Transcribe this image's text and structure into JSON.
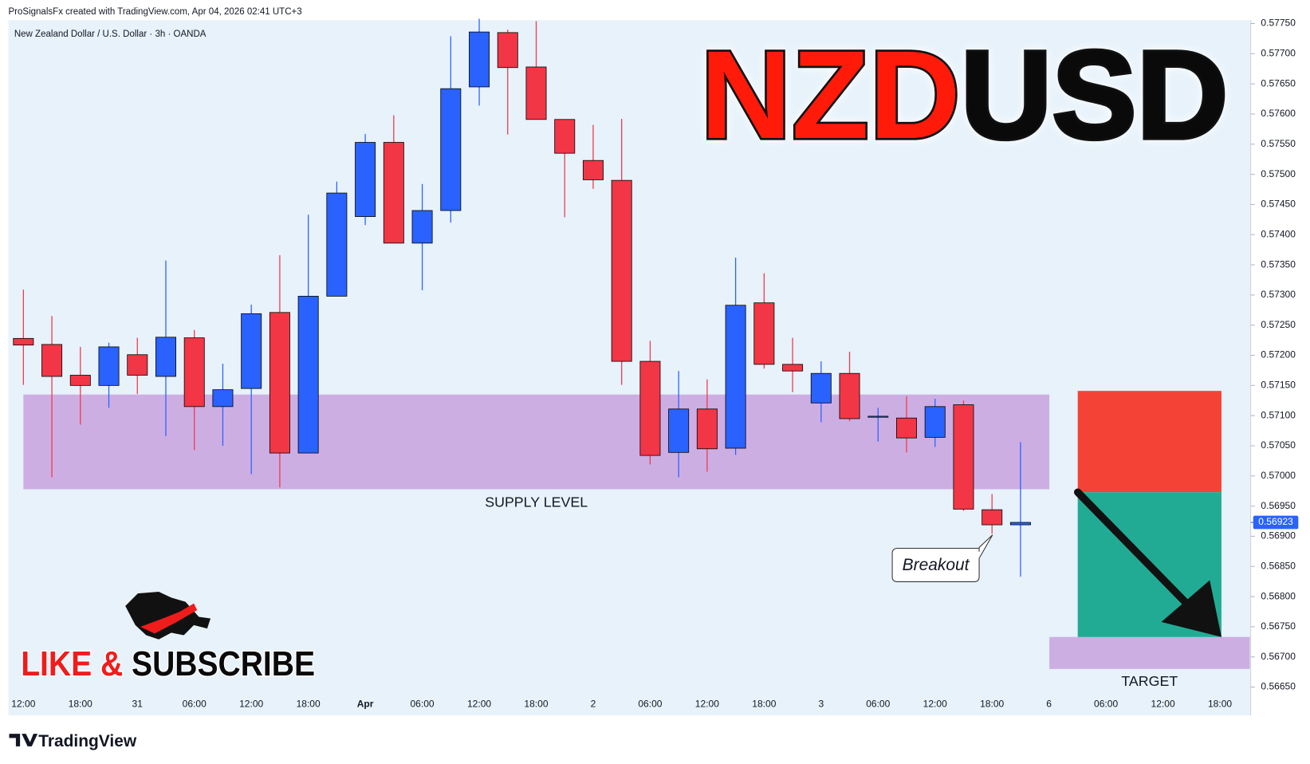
{
  "chart_data": {
    "type": "candlestick",
    "header": "ProSignalsFx created with TradingView.com, Apr 04, 2026 02:41 UTC+3",
    "subtitle": "New Zealand Dollar / U.S. Dollar · 3h · OANDA",
    "title": [
      "NZD",
      "USD"
    ],
    "banner": [
      "LIKE & ",
      "SUBSCRIBE"
    ],
    "annotation": "Breakout",
    "brand": "TradingView",
    "categories": [
      "12:00",
      null,
      "18:00",
      null,
      "31",
      null,
      "06:00",
      null,
      "12:00",
      null,
      "18:00",
      null,
      "Apr",
      null,
      "06:00",
      null,
      "12:00",
      null,
      "18:00",
      null,
      "2",
      null,
      "06:00",
      null,
      "12:00",
      null,
      "18:00",
      null,
      "3",
      null,
      "06:00",
      null,
      "12:00",
      null,
      "18:00",
      null,
      "6",
      null,
      "06:00",
      null,
      "12:00",
      null,
      "18:00"
    ],
    "open": [
      0.57228,
      0.57218,
      0.57167,
      0.5715,
      0.57201,
      0.57165,
      0.57229,
      0.57115,
      0.57145,
      0.57271,
      0.57038,
      0.57298,
      0.5743,
      0.57553,
      0.57386,
      0.5744,
      0.57645,
      0.57735,
      0.57678,
      0.57591,
      0.57523,
      0.5749,
      0.5719,
      0.57039,
      0.57111,
      0.57046,
      0.57287,
      0.57185,
      0.57121,
      0.5717,
      0.57099,
      0.57096,
      0.57064,
      0.57118,
      0.56944,
      0.56919,
      null,
      null,
      null,
      null,
      null,
      null,
      null
    ],
    "high": [
      0.57309,
      0.57265,
      0.57214,
      0.57221,
      0.57229,
      0.57357,
      0.57242,
      0.57186,
      0.57284,
      0.57366,
      0.57433,
      0.57488,
      0.57567,
      0.57598,
      0.57484,
      0.57729,
      0.57758,
      0.5774,
      0.57754,
      0.57591,
      0.57582,
      0.57592,
      0.57224,
      0.57174,
      0.5716,
      0.57362,
      0.57336,
      0.57229,
      0.5719,
      0.57206,
      0.57113,
      0.57132,
      0.57128,
      0.57125,
      0.5697,
      0.57056,
      null,
      null,
      null,
      null,
      null,
      null,
      null
    ],
    "low": [
      0.57151,
      0.56998,
      0.57085,
      0.57113,
      0.57136,
      0.57066,
      0.57043,
      0.5705,
      0.57003,
      0.56981,
      0.57038,
      0.57298,
      0.57416,
      0.57386,
      0.57308,
      0.5742,
      0.57614,
      0.57566,
      0.57591,
      0.57429,
      0.57476,
      0.57151,
      0.57019,
      0.56998,
      0.57007,
      0.57035,
      0.57178,
      0.57139,
      0.57089,
      0.57091,
      0.57057,
      0.57039,
      0.57048,
      0.56942,
      0.56904,
      0.56833,
      null,
      null,
      null,
      null,
      null,
      null,
      null
    ],
    "close": [
      0.57217,
      0.57165,
      0.5715,
      0.57214,
      0.57167,
      0.5723,
      0.57115,
      0.57143,
      0.57269,
      0.57038,
      0.57298,
      0.57469,
      0.57553,
      0.57386,
      0.5744,
      0.57642,
      0.57736,
      0.57677,
      0.57591,
      0.57535,
      0.57491,
      0.5719,
      0.57034,
      0.57111,
      0.57045,
      0.57283,
      0.57185,
      0.57174,
      0.5717,
      0.57095,
      0.57099,
      0.57063,
      0.57115,
      0.56945,
      0.56919,
      0.56923,
      null,
      null,
      null,
      null,
      null,
      null,
      null
    ],
    "up_color": "#2962ff",
    "down_color": "#f23645",
    "ylim": [
      0.56603,
      0.57775
    ],
    "yticks": [
      {
        "value": 0.5665,
        "label": "0.56650"
      },
      {
        "value": 0.567,
        "label": "0.56700"
      },
      {
        "value": 0.5675,
        "label": "0.56750"
      },
      {
        "value": 0.568,
        "label": "0.56800"
      },
      {
        "value": 0.5685,
        "label": "0.56850"
      },
      {
        "value": 0.569,
        "label": "0.56900"
      },
      {
        "value": 0.5695,
        "label": "0.56950"
      },
      {
        "value": 0.57,
        "label": "0.57000"
      },
      {
        "value": 0.5705,
        "label": "0.57050"
      },
      {
        "value": 0.571,
        "label": "0.57100"
      },
      {
        "value": 0.5715,
        "label": "0.57150"
      },
      {
        "value": 0.572,
        "label": "0.57200"
      },
      {
        "value": 0.5725,
        "label": "0.57250"
      },
      {
        "value": 0.573,
        "label": "0.57300"
      },
      {
        "value": 0.5735,
        "label": "0.57350"
      },
      {
        "value": 0.574,
        "label": "0.57400"
      },
      {
        "value": 0.5745,
        "label": "0.57450"
      },
      {
        "value": 0.575,
        "label": "0.57500"
      },
      {
        "value": 0.5755,
        "label": "0.57550"
      },
      {
        "value": 0.576,
        "label": "0.57600"
      },
      {
        "value": 0.5765,
        "label": "0.57650"
      },
      {
        "value": 0.577,
        "label": "0.57700"
      },
      {
        "value": 0.5775,
        "label": "0.57750"
      }
    ],
    "last_price": 0.56923,
    "zones": [
      {
        "name": "SUPPLY LEVEL",
        "from": 0.56978,
        "to": 0.57135,
        "color": "#cdaee3"
      },
      {
        "name": "TARGET",
        "from": 0.5668,
        "to": 0.56733,
        "color": "#cdaee3"
      }
    ],
    "position": {
      "stop": 0.57141,
      "entry": 0.56973,
      "target": 0.56733,
      "stop_color": "#f44336",
      "target_color": "#22ab94"
    },
    "grid": false
  }
}
